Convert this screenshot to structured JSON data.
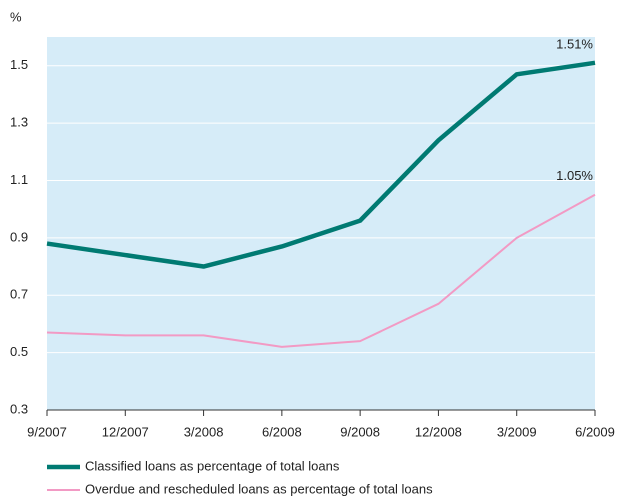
{
  "chart_data": {
    "type": "line",
    "y_axis_label": "%",
    "categories": [
      "9/2007",
      "12/2007",
      "3/2008",
      "6/2008",
      "9/2008",
      "12/2008",
      "3/2009",
      "6/2009"
    ],
    "series": [
      {
        "name": "Classified loans as percentage of total loans",
        "color": "#007a72",
        "values": [
          0.88,
          0.84,
          0.8,
          0.87,
          0.96,
          1.24,
          1.47,
          1.51
        ],
        "value_labels": [
          null,
          null,
          null,
          null,
          null,
          null,
          null,
          "1.51%"
        ]
      },
      {
        "name": "Overdue and rescheduled loans as percentage of total loans",
        "color": "#f29ac4",
        "values": [
          0.57,
          0.56,
          0.56,
          0.52,
          0.54,
          0.67,
          0.9,
          1.05
        ],
        "value_labels": [
          null,
          null,
          null,
          null,
          null,
          null,
          null,
          "1.05%"
        ]
      }
    ],
    "ylim": [
      0.3,
      1.6
    ],
    "yticks": [
      0.3,
      0.5,
      0.7,
      0.9,
      1.1,
      1.3,
      1.5
    ],
    "grid": true
  }
}
